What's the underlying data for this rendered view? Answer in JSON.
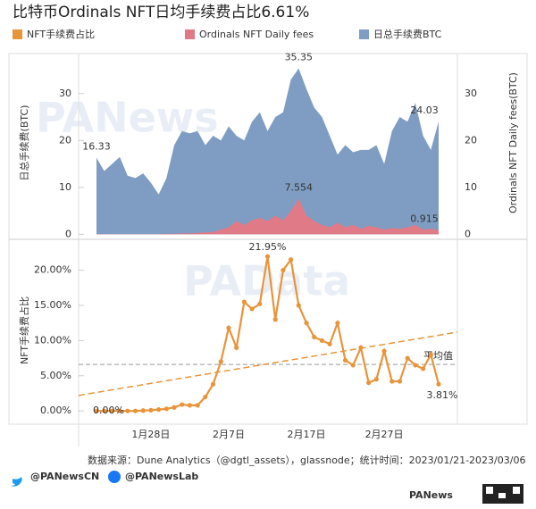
{
  "header": {
    "title": "比特币Ordinals NFT日均手续费占比6.61%"
  },
  "watermarks": [
    "PANews",
    "PAData"
  ],
  "chart_data": [
    {
      "type": "area",
      "y_label": "日总手续费(BTC)",
      "y2_label": "Ordinals NFT Daily fees(BTC)",
      "ylim": [
        -0.5,
        37
      ],
      "yticks": [
        0,
        10,
        20,
        30
      ],
      "y2lim": [
        -0.5,
        37
      ],
      "y2ticks": [
        0,
        10,
        20,
        30
      ],
      "series": [
        {
          "name": "日总手续费BTC",
          "color": "#7f9dc2",
          "values": [
            16.33,
            13.5,
            15,
            16.5,
            12.5,
            12,
            13,
            11,
            8.5,
            12,
            19,
            22,
            21.5,
            22,
            19,
            21,
            20,
            23,
            21,
            20,
            24,
            26,
            22,
            25,
            26,
            33,
            35.35,
            31,
            27,
            25,
            21,
            17,
            19,
            17.5,
            18,
            18,
            19,
            15,
            22,
            25,
            24,
            28,
            21,
            18,
            24.03
          ],
          "value_labels": [
            "16.33",
            null,
            null,
            null,
            null,
            null,
            null,
            null,
            null,
            null,
            null,
            null,
            null,
            null,
            null,
            null,
            null,
            null,
            null,
            null,
            null,
            null,
            null,
            null,
            null,
            null,
            "35.35",
            null,
            null,
            null,
            null,
            null,
            null,
            null,
            null,
            null,
            null,
            null,
            null,
            null,
            null,
            null,
            null,
            null,
            "24.03"
          ]
        },
        {
          "name": "Ordinals NFT Daily fees",
          "color": "#e07a86",
          "axis": "y2",
          "values": [
            0.05,
            0.05,
            0.05,
            0.05,
            0.05,
            0.05,
            0.05,
            0.05,
            0.05,
            0.1,
            0.1,
            0.2,
            0.2,
            0.3,
            0.4,
            0.5,
            1,
            1.5,
            2.8,
            2,
            3,
            3.5,
            2.8,
            4,
            3,
            5,
            7.554,
            4,
            2.8,
            2,
            1.5,
            2.5,
            1.5,
            2,
            1.2,
            1.8,
            1.5,
            1,
            1.3,
            1.2,
            1.5,
            2,
            1,
            1.2,
            0.915
          ],
          "value_labels": [
            null,
            null,
            null,
            null,
            null,
            null,
            null,
            null,
            null,
            null,
            null,
            null,
            null,
            null,
            null,
            null,
            null,
            null,
            null,
            null,
            null,
            null,
            null,
            null,
            null,
            null,
            "7.554",
            null,
            null,
            null,
            null,
            null,
            null,
            null,
            null,
            null,
            null,
            null,
            null,
            null,
            null,
            null,
            null,
            null,
            "0.915"
          ]
        }
      ]
    },
    {
      "type": "line",
      "y_label": "NFT手续费占比",
      "categories": [
        null,
        null,
        null,
        null,
        null,
        null,
        null,
        "1月28日",
        null,
        null,
        null,
        null,
        null,
        null,
        null,
        null,
        null,
        "2月7日",
        null,
        null,
        null,
        null,
        null,
        null,
        null,
        null,
        null,
        "2月17日",
        null,
        null,
        null,
        null,
        null,
        null,
        null,
        null,
        null,
        "2月27日",
        null,
        null,
        null,
        null,
        null,
        null,
        null
      ],
      "ylim": [
        -1.5,
        23.5
      ],
      "yticks": [
        {
          "value": 0,
          "label": "0.00%"
        },
        {
          "value": 5,
          "label": "5.00%"
        },
        {
          "value": 10,
          "label": "10.00%"
        },
        {
          "value": 15,
          "label": "15.00%"
        },
        {
          "value": 20,
          "label": "20.00%"
        }
      ],
      "series": [
        {
          "name": "NFT手续费占比",
          "color": "#e8943a",
          "values": [
            0,
            0,
            0,
            0,
            0,
            0,
            0.05,
            0.1,
            0.2,
            0.3,
            0.5,
            0.9,
            0.8,
            0.8,
            2,
            3.8,
            7,
            11.8,
            9,
            15.5,
            14.5,
            15.2,
            21.95,
            13,
            20,
            21.5,
            15,
            12.5,
            10.5,
            10,
            9.5,
            12.5,
            7.2,
            6.5,
            9,
            4,
            4.5,
            8.5,
            4.2,
            4.2,
            7.5,
            6.5,
            6,
            8,
            3.81
          ],
          "value_labels": [
            "0.00%",
            null,
            null,
            null,
            null,
            null,
            null,
            null,
            null,
            null,
            null,
            null,
            null,
            null,
            null,
            null,
            null,
            null,
            null,
            null,
            null,
            null,
            "21.95%",
            null,
            null,
            null,
            null,
            null,
            null,
            null,
            null,
            null,
            null,
            null,
            null,
            null,
            null,
            null,
            null,
            null,
            null,
            null,
            null,
            null,
            "3.81%"
          ]
        }
      ],
      "trendline": {
        "start": 2.2,
        "end": 11.2
      },
      "average": {
        "value": 6.61,
        "label": "平均值"
      }
    }
  ],
  "footer": {
    "source": "数据来源：Dune Analytics（@dgtl_assets），glassnode；统计时间：2023/01/21-2023/03/06",
    "twitter": "@PANewsCN",
    "facebook": "@PANewsLab",
    "logo": "PANews"
  }
}
